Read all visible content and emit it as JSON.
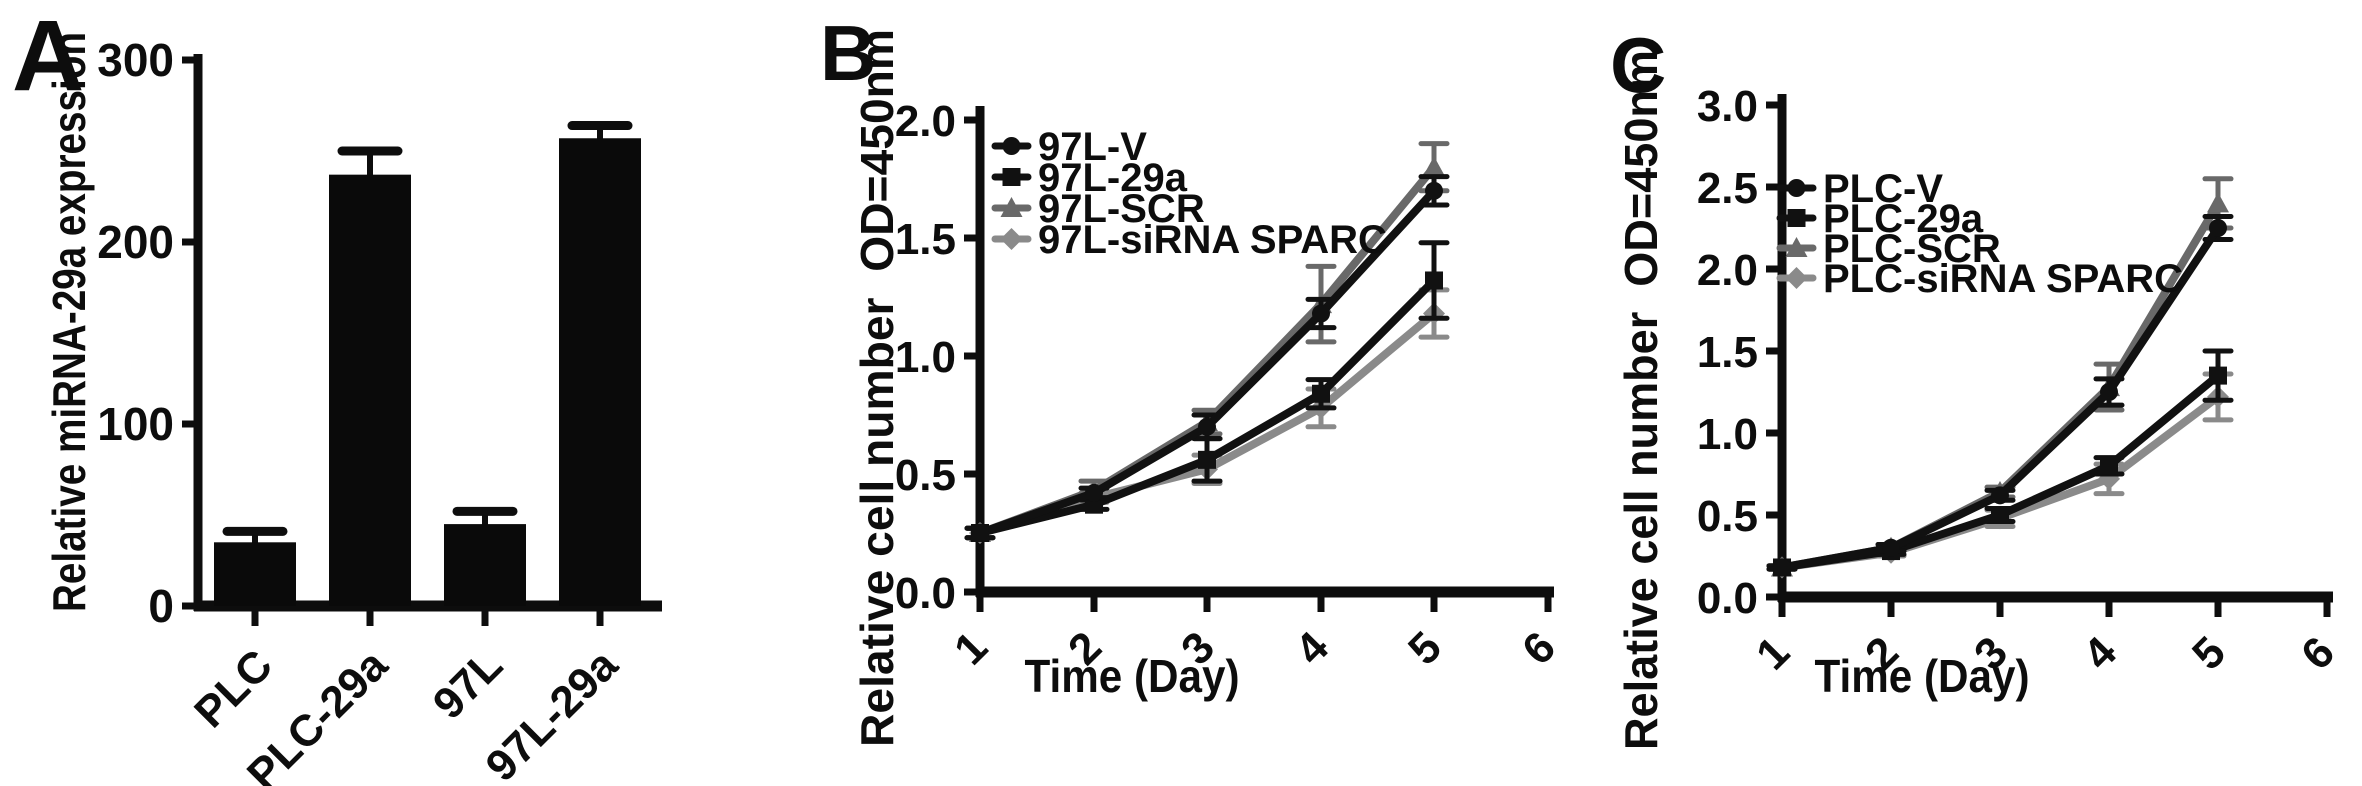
{
  "figure": {
    "background": "#ffffff",
    "text_color": "#0d0d0d",
    "panels": [
      {
        "letter": "A"
      },
      {
        "letter": "B"
      },
      {
        "letter": "C"
      }
    ]
  },
  "chart_data": [
    {
      "panel": "A",
      "type": "bar",
      "title": "",
      "ylabel": "Relative miRNA-29a expression",
      "xlabel": "",
      "categories": [
        "PLC",
        "PLC-29a",
        "97L",
        "97L-29a"
      ],
      "values": [
        35,
        237,
        45,
        257
      ],
      "errors_plus": [
        6,
        13,
        7,
        7
      ],
      "ylim": [
        0,
        300
      ],
      "yticks": [
        0,
        100,
        200,
        300
      ],
      "ytick_labels": [
        "0",
        "100",
        "200",
        "300"
      ],
      "bar_color": "#0a0a0a",
      "x_tick_label_rotation": -45,
      "grid": false,
      "legend_position": "none"
    },
    {
      "panel": "B",
      "type": "line",
      "title": "",
      "ylabel": "Relative cell number  OD=450nm",
      "xlabel": "Time (Day)",
      "x": [
        1,
        2,
        3,
        4,
        5
      ],
      "xticks": [
        1,
        2,
        3,
        4,
        5,
        6
      ],
      "xtick_labels": [
        "1",
        "2",
        "3",
        "4",
        "5",
        "6"
      ],
      "ylim": [
        0,
        2.0
      ],
      "yticks": [
        0,
        0.5,
        1.0,
        1.5,
        2.0
      ],
      "ytick_labels": [
        "0.0",
        "0.5",
        "1.0",
        "1.5",
        "2.0"
      ],
      "x_tick_label_rotation": -45,
      "grid": false,
      "legend_position": "top-left",
      "series": [
        {
          "name": "97L-V",
          "color": "#111111",
          "marker": "circle",
          "values": [
            0.25,
            0.42,
            0.7,
            1.18,
            1.7
          ],
          "errors": [
            0.02,
            0.02,
            0.05,
            0.06,
            0.06
          ]
        },
        {
          "name": "97L-29a",
          "color": "#111111",
          "marker": "square",
          "values": [
            0.25,
            0.37,
            0.56,
            0.84,
            1.32
          ],
          "errors": [
            0.02,
            0.02,
            0.09,
            0.06,
            0.16
          ]
        },
        {
          "name": "97L-SCR",
          "color": "#696969",
          "marker": "triangle",
          "values": [
            0.25,
            0.43,
            0.72,
            1.22,
            1.8
          ],
          "errors": [
            0.02,
            0.04,
            0.05,
            0.16,
            0.1
          ]
        },
        {
          "name": "97L-siRNA SPARC",
          "color": "#8a8a8a",
          "marker": "diamond",
          "values": [
            0.25,
            0.4,
            0.52,
            0.78,
            1.18
          ],
          "errors": [
            0.02,
            0.02,
            0.06,
            0.08,
            0.1
          ]
        }
      ]
    },
    {
      "panel": "C",
      "type": "line",
      "title": "",
      "ylabel": "Relative cell number  OD=450nm",
      "xlabel": "Time (Day)",
      "x": [
        1,
        2,
        3,
        4,
        5
      ],
      "xticks": [
        1,
        2,
        3,
        4,
        5,
        6
      ],
      "xtick_labels": [
        "1",
        "2",
        "3",
        "4",
        "5",
        "6"
      ],
      "ylim": [
        0,
        3.0
      ],
      "yticks": [
        0,
        0.5,
        1.0,
        1.5,
        2.0,
        2.5,
        3.0
      ],
      "ytick_labels": [
        "0.0",
        "0.5",
        "1.0",
        "1.5",
        "2.0",
        "2.5",
        "3.0"
      ],
      "x_tick_label_rotation": -45,
      "grid": false,
      "legend_position": "top-left",
      "series": [
        {
          "name": "PLC-V",
          "color": "#111111",
          "marker": "circle",
          "values": [
            0.18,
            0.3,
            0.62,
            1.25,
            2.25
          ],
          "errors": [
            0.01,
            0.02,
            0.03,
            0.08,
            0.07
          ]
        },
        {
          "name": "PLC-29a",
          "color": "#111111",
          "marker": "square",
          "values": [
            0.18,
            0.28,
            0.5,
            0.8,
            1.35
          ],
          "errors": [
            0.01,
            0.02,
            0.04,
            0.05,
            0.15
          ]
        },
        {
          "name": "PLC-SCR",
          "color": "#696969",
          "marker": "triangle",
          "values": [
            0.18,
            0.3,
            0.64,
            1.28,
            2.4
          ],
          "errors": [
            0.01,
            0.02,
            0.03,
            0.14,
            0.15
          ]
        },
        {
          "name": "PLC-siRNA SPARC",
          "color": "#8a8a8a",
          "marker": "diamond",
          "values": [
            0.18,
            0.27,
            0.48,
            0.72,
            1.22
          ],
          "errors": [
            0.01,
            0.02,
            0.05,
            0.09,
            0.14
          ]
        }
      ]
    }
  ]
}
